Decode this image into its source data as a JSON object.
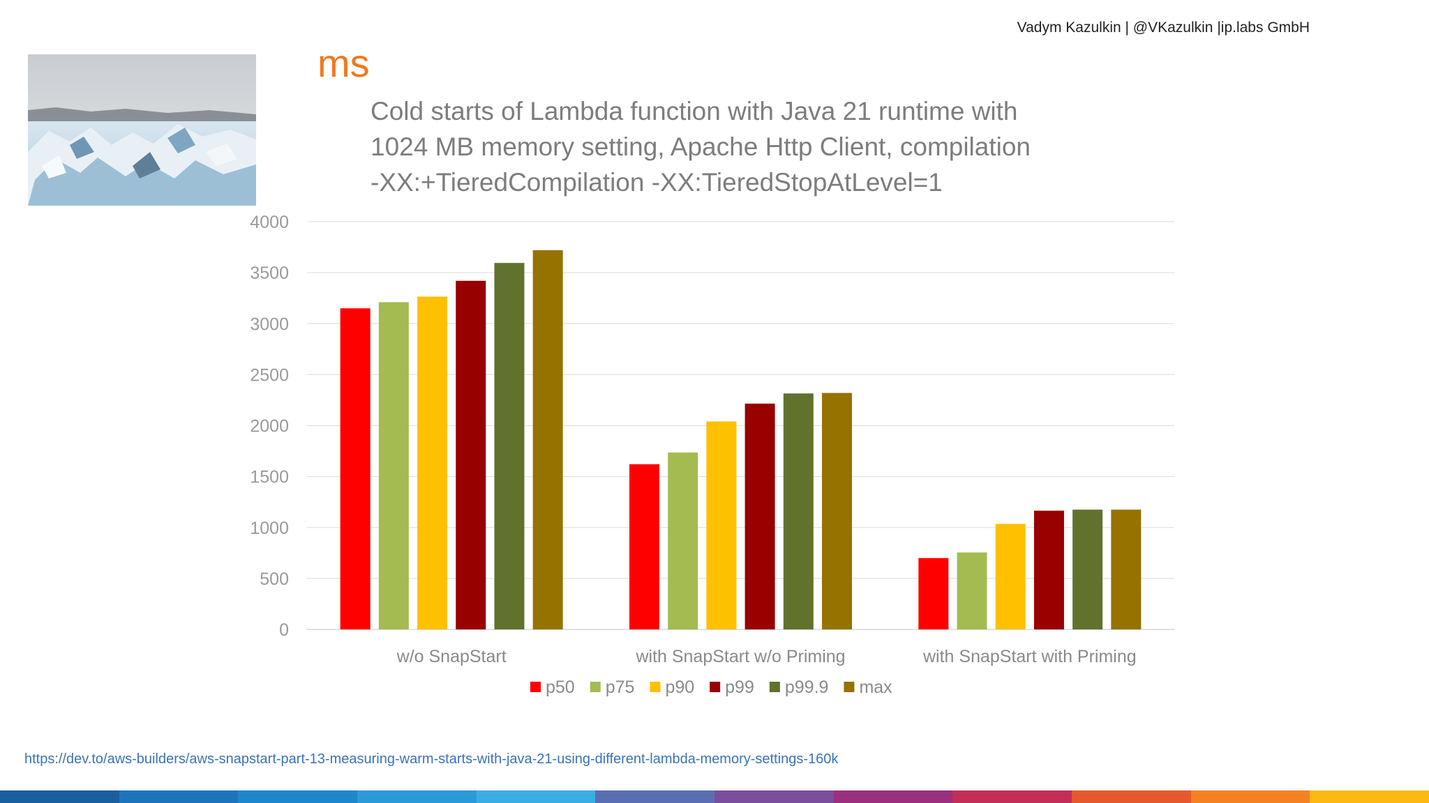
{
  "header": {
    "author_line": "Vadym Kazulkin | @VKazulkin |ip.labs GmbH"
  },
  "chart_data": {
    "type": "bar",
    "unit_label": "ms",
    "title_lines": [
      "Cold starts of Lambda function with Java 21 runtime with",
      "1024 MB memory setting, Apache Http Client,  compilation",
      "-XX:+TieredCompilation -XX:TieredStopAtLevel=1"
    ],
    "categories": [
      "w/o SnapStart",
      "with SnapStart w/o Priming",
      "with SnapStart with Priming"
    ],
    "ylim": [
      0,
      4000
    ],
    "yticks": [
      "0",
      "500",
      "1000",
      "1500",
      "2000",
      "2500",
      "3000",
      "3500",
      "4000"
    ],
    "grid": true,
    "legend_position": "bottom",
    "series": [
      {
        "name": "p50",
        "color": "#ff0000",
        "values": [
          3150,
          1620,
          700
        ]
      },
      {
        "name": "p75",
        "color": "#a4bb51",
        "values": [
          3210,
          1735,
          755
        ]
      },
      {
        "name": "p90",
        "color": "#ffc000",
        "values": [
          3265,
          2040,
          1035
        ]
      },
      {
        "name": "p99",
        "color": "#990000",
        "values": [
          3420,
          2215,
          1165
        ]
      },
      {
        "name": "p99.9",
        "color": "#61722d",
        "values": [
          3595,
          2315,
          1175
        ]
      },
      {
        "name": "max",
        "color": "#967200",
        "values": [
          3720,
          2320,
          1175
        ]
      }
    ]
  },
  "footer": {
    "source_url": "https://dev.to/aws-builders/aws-snapstart-part-13-measuring-warm-starts-with-java-21-using-different-lambda-memory-settings-160k",
    "bar_colors": [
      "#1a5fa0",
      "#1c75bc",
      "#1e86cc",
      "#2a9ad8",
      "#3aaee3",
      "#5a6fb3",
      "#7a4e9c",
      "#9c2f7e",
      "#c22e55",
      "#e45a2e",
      "#f58220",
      "#fdb813"
    ]
  }
}
